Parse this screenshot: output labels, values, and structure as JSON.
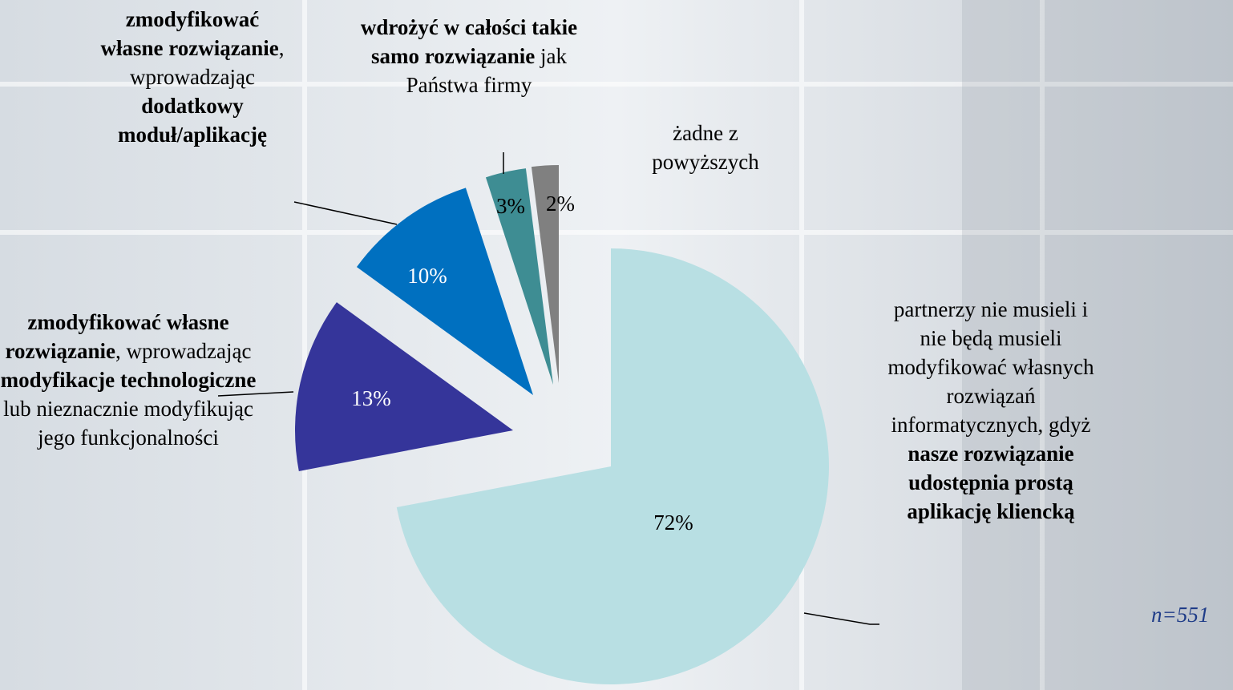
{
  "chart_data": {
    "type": "pie",
    "categories": [
      [
        {
          "text": "partnerzy nie musieli i nie będą musieli modyfikować własnych rozwiązań informatycznych, gdyż",
          "bold": false
        },
        {
          "text": "nasze rozwiązanie udostępnia prostą aplikację kliencką",
          "bold": true
        }
      ],
      [
        {
          "text": "zmodyfikować własne rozwiązanie",
          "bold": true
        },
        {
          "text": ", wprowadzając",
          "bold": false
        },
        {
          "text": "modyfikacje technologiczne",
          "bold": true
        },
        {
          "text": "lub nieznacznie modyfikując jego funkcjonalności",
          "bold": false
        }
      ],
      [
        {
          "text": "zmodyfikować własne rozwiązanie",
          "bold": true
        },
        {
          "text": ", wprowadzając",
          "bold": false
        },
        {
          "text": "dodatkowy moduł/aplikację",
          "bold": true
        }
      ],
      [
        {
          "text": "wdrożyć w całości takie samo rozwiązanie",
          "bold": true
        },
        {
          "text": "jak Państwa firmy",
          "bold": false
        }
      ],
      [
        {
          "text": "żadne z powyższych",
          "bold": false
        }
      ]
    ],
    "values": [
      72,
      13,
      10,
      3,
      2
    ],
    "value_labels": [
      "72%",
      "13%",
      "10%",
      "3%",
      "2%"
    ],
    "colors": [
      "#b8dfe3",
      "#35359a",
      "#0070c0",
      "#3e8d93",
      "#808080"
    ],
    "value_label_colors": [
      "#000000",
      "#ffffff",
      "#ffffff",
      "#000000",
      "#000000"
    ],
    "note": "n=551"
  }
}
